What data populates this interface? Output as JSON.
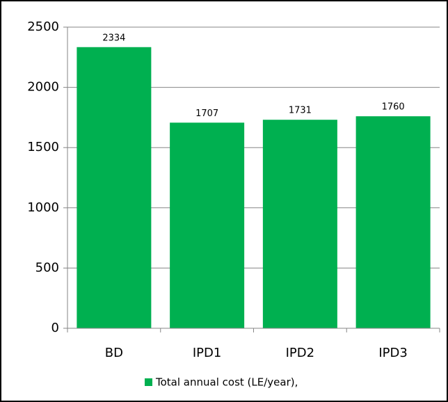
{
  "chart_data": {
    "type": "bar",
    "categories": [
      "BD",
      "IPD1",
      "IPD2",
      "IPD3"
    ],
    "series": [
      {
        "name": "Total annual cost (LE/year),",
        "color": "#00b050",
        "values": [
          2334,
          1707,
          1731,
          1760
        ]
      }
    ],
    "ylim": [
      0,
      2500
    ],
    "yticks": [
      0,
      500,
      1000,
      1500,
      2000,
      2500
    ],
    "grid": true,
    "legend": "bottom"
  }
}
